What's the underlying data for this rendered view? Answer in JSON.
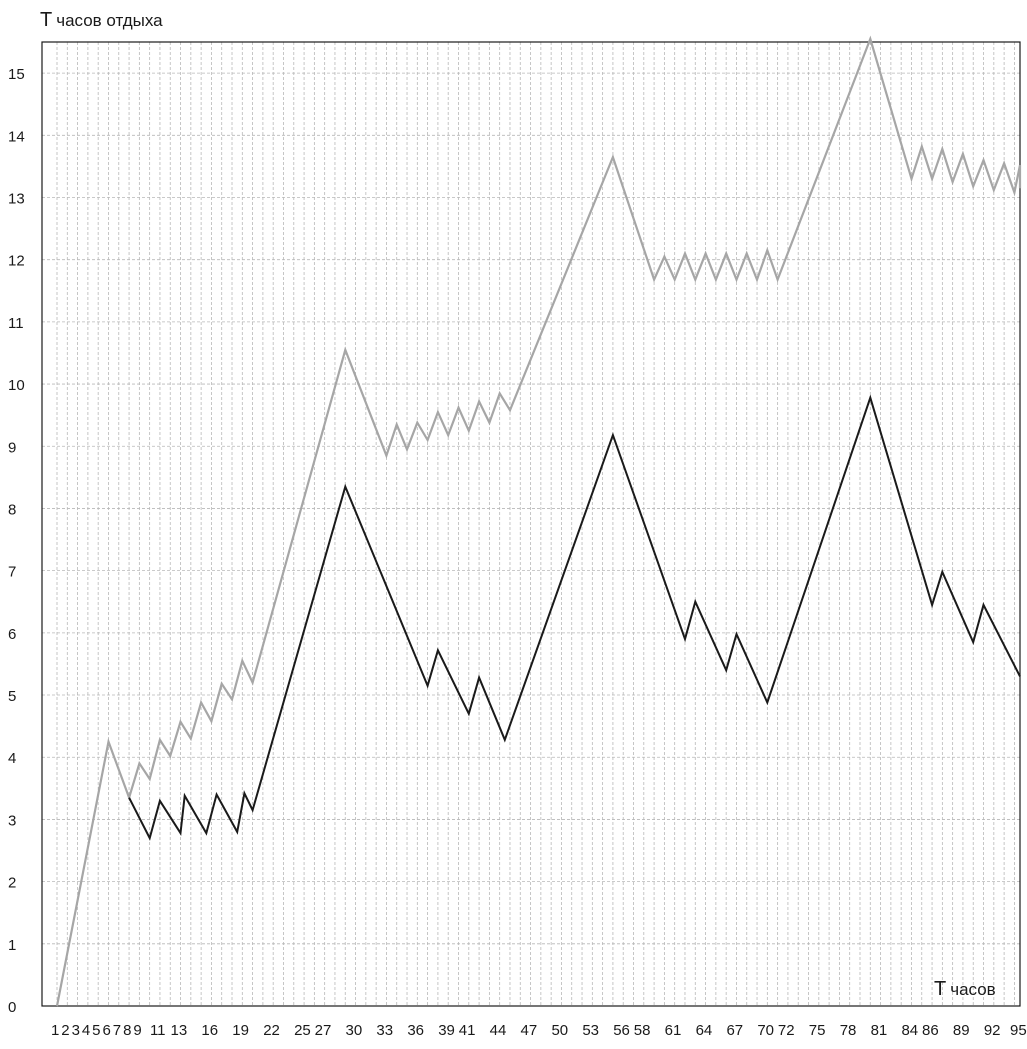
{
  "chart_data": {
    "type": "line",
    "ylabel_main": "T",
    "ylabel_sub": "часов отдыха",
    "xlabel_main": "T",
    "xlabel_sub": "часов",
    "ylim": [
      0,
      15.5
    ],
    "xlim": [
      1,
      96
    ],
    "grid": true,
    "y_ticks": [
      "0",
      "1",
      "2",
      "3",
      "4",
      "5",
      "6",
      "7",
      "8",
      "9",
      "10",
      "11",
      "12",
      "13",
      "14",
      "15"
    ],
    "x_tick_labels": [
      {
        "x": 1,
        "label": "1"
      },
      {
        "x": 2,
        "label": "2"
      },
      {
        "x": 3,
        "label": "3"
      },
      {
        "x": 4,
        "label": "4"
      },
      {
        "x": 5,
        "label": "5"
      },
      {
        "x": 6,
        "label": "6"
      },
      {
        "x": 7,
        "label": "7"
      },
      {
        "x": 8,
        "label": "8"
      },
      {
        "x": 9,
        "label": "9"
      },
      {
        "x": 11,
        "label": "11"
      },
      {
        "x": 13,
        "label": "13"
      },
      {
        "x": 16,
        "label": "16"
      },
      {
        "x": 19,
        "label": "19"
      },
      {
        "x": 22,
        "label": "22"
      },
      {
        "x": 25,
        "label": "25"
      },
      {
        "x": 27,
        "label": "27"
      },
      {
        "x": 30,
        "label": "30"
      },
      {
        "x": 33,
        "label": "33"
      },
      {
        "x": 36,
        "label": "36"
      },
      {
        "x": 39,
        "label": "39"
      },
      {
        "x": 41,
        "label": "41"
      },
      {
        "x": 44,
        "label": "44"
      },
      {
        "x": 47,
        "label": "47"
      },
      {
        "x": 50,
        "label": "50"
      },
      {
        "x": 53,
        "label": "53"
      },
      {
        "x": 56,
        "label": "56"
      },
      {
        "x": 58,
        "label": "58"
      },
      {
        "x": 61,
        "label": "61"
      },
      {
        "x": 64,
        "label": "64"
      },
      {
        "x": 67,
        "label": "67"
      },
      {
        "x": 70,
        "label": "70"
      },
      {
        "x": 72,
        "label": "72"
      },
      {
        "x": 75,
        "label": "75"
      },
      {
        "x": 78,
        "label": "78"
      },
      {
        "x": 81,
        "label": "81"
      },
      {
        "x": 84,
        "label": "84"
      },
      {
        "x": 86,
        "label": "86"
      },
      {
        "x": 89,
        "label": "89"
      },
      {
        "x": 92,
        "label": "92"
      },
      {
        "x": 95,
        "label": "95"
      }
    ],
    "x_gridlines": [
      1,
      2,
      3,
      4,
      5,
      6,
      7,
      8,
      9,
      10,
      11,
      12,
      13,
      14,
      15,
      16,
      17,
      18,
      19,
      20,
      21,
      22,
      23,
      24,
      25,
      26,
      27,
      28,
      29,
      30,
      31,
      32,
      33,
      34,
      35,
      36,
      37,
      38,
      39,
      40,
      41,
      42,
      43,
      44,
      45,
      46,
      47,
      48,
      49,
      50,
      51,
      52,
      53,
      54,
      55,
      56,
      57,
      58,
      59,
      60,
      61,
      62,
      63,
      64,
      65,
      66,
      67,
      68,
      69,
      70,
      71,
      72,
      73,
      74,
      75,
      76,
      77,
      78,
      79,
      80,
      81,
      82,
      83,
      84,
      85,
      86,
      87,
      88,
      89,
      90,
      91,
      92,
      93,
      94,
      95,
      96
    ],
    "series": [
      {
        "color": "#a6a6a6",
        "points": [
          [
            1,
            0
          ],
          [
            6,
            4.25
          ],
          [
            8,
            3.35
          ],
          [
            9,
            3.9
          ],
          [
            10,
            3.65
          ],
          [
            11,
            4.28
          ],
          [
            12,
            4.02
          ],
          [
            13,
            4.57
          ],
          [
            14,
            4.3
          ],
          [
            15,
            4.88
          ],
          [
            16,
            4.58
          ],
          [
            17,
            5.18
          ],
          [
            18,
            4.93
          ],
          [
            19,
            5.55
          ],
          [
            20,
            5.2
          ],
          [
            29,
            10.55
          ],
          [
            33,
            8.85
          ],
          [
            34,
            9.35
          ],
          [
            35,
            8.95
          ],
          [
            36,
            9.38
          ],
          [
            37,
            9.1
          ],
          [
            38,
            9.55
          ],
          [
            39,
            9.18
          ],
          [
            40,
            9.62
          ],
          [
            41,
            9.25
          ],
          [
            42,
            9.72
          ],
          [
            43,
            9.38
          ],
          [
            44,
            9.85
          ],
          [
            45,
            9.58
          ],
          [
            55,
            13.65
          ],
          [
            59,
            11.68
          ],
          [
            60,
            12.05
          ],
          [
            61,
            11.68
          ],
          [
            62,
            12.1
          ],
          [
            63,
            11.68
          ],
          [
            64,
            12.1
          ],
          [
            65,
            11.68
          ],
          [
            66,
            12.1
          ],
          [
            67,
            11.68
          ],
          [
            68,
            12.1
          ],
          [
            69,
            11.68
          ],
          [
            70,
            12.15
          ],
          [
            71,
            11.68
          ],
          [
            80,
            15.55
          ],
          [
            84,
            13.3
          ],
          [
            85,
            13.82
          ],
          [
            86,
            13.3
          ],
          [
            87,
            13.78
          ],
          [
            88,
            13.25
          ],
          [
            89,
            13.7
          ],
          [
            90,
            13.18
          ],
          [
            91,
            13.6
          ],
          [
            92,
            13.12
          ],
          [
            93,
            13.55
          ],
          [
            94,
            13.08
          ],
          [
            95,
            13.52
          ],
          [
            96,
            13.15
          ]
        ]
      },
      {
        "color": "#1a1a1a",
        "points": [
          [
            8,
            3.35
          ],
          [
            10,
            2.7
          ],
          [
            11,
            3.3
          ],
          [
            13,
            2.78
          ],
          [
            13.4,
            3.38
          ],
          [
            15.5,
            2.78
          ],
          [
            16.5,
            3.4
          ],
          [
            18.5,
            2.8
          ],
          [
            19.2,
            3.42
          ],
          [
            20,
            3.15
          ],
          [
            29,
            8.35
          ],
          [
            37,
            5.15
          ],
          [
            38,
            5.72
          ],
          [
            41,
            4.7
          ],
          [
            42,
            5.28
          ],
          [
            44.5,
            4.28
          ],
          [
            55,
            9.18
          ],
          [
            62,
            5.9
          ],
          [
            63,
            6.5
          ],
          [
            66,
            5.4
          ],
          [
            67,
            5.98
          ],
          [
            70,
            4.88
          ],
          [
            80,
            9.78
          ],
          [
            86,
            6.45
          ],
          [
            87,
            6.98
          ],
          [
            90,
            5.85
          ],
          [
            91,
            6.45
          ],
          [
            96,
            5.3
          ]
        ]
      }
    ]
  }
}
